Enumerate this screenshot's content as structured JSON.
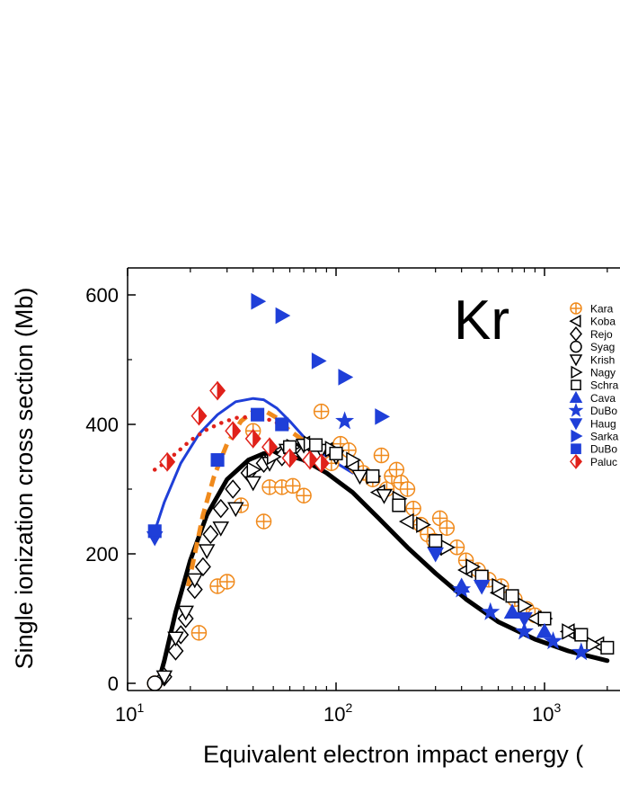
{
  "chart_data": {
    "type": "scatter",
    "element_label": "Kr",
    "xlabel": "Equivalent electron impact energy (",
    "ylabel": "Single ionization cross section (Mb)",
    "xscale": "log",
    "xlim": [
      10,
      2000
    ],
    "ylim": [
      -10,
      630
    ],
    "x_ticks": [
      {
        "value": 10,
        "base": "10",
        "exp": "1"
      },
      {
        "value": 100,
        "base": "10",
        "exp": "2"
      },
      {
        "value": 1000,
        "base": "10",
        "exp": "3"
      }
    ],
    "y_ticks": [
      {
        "value": 0,
        "label": "0"
      },
      {
        "value": 200,
        "label": "200"
      },
      {
        "value": 400,
        "label": "400"
      },
      {
        "value": 600,
        "label": "600"
      }
    ],
    "legend_position": "top-right (cropped)",
    "curves": [
      {
        "name": "black theory",
        "color": "#000000",
        "style": "solid-thick",
        "x": [
          14.0,
          15,
          17,
          20,
          24,
          30,
          38,
          45,
          55,
          70,
          90,
          120,
          160,
          220,
          300,
          420,
          600,
          900,
          1300,
          2000
        ],
        "y": [
          0,
          35,
          110,
          190,
          260,
          315,
          345,
          355,
          355,
          345,
          325,
          295,
          255,
          210,
          170,
          130,
          95,
          68,
          50,
          35
        ]
      },
      {
        "name": "blue theory",
        "color": "#1f3fd8",
        "style": "solid",
        "x": [
          13.5,
          15,
          18,
          22,
          27,
          33,
          40,
          45,
          52,
          60,
          75,
          95,
          120
        ],
        "y": [
          235,
          280,
          340,
          385,
          415,
          435,
          440,
          438,
          425,
          405,
          370,
          345,
          325
        ]
      },
      {
        "name": "orange theory",
        "color": "#f08a1c",
        "style": "dashed",
        "x": [
          19.5,
          21,
          23,
          26,
          30,
          35,
          40,
          45,
          52,
          60,
          70,
          80
        ],
        "y": [
          150,
          200,
          260,
          320,
          370,
          405,
          420,
          422,
          410,
          390,
          375,
          365
        ]
      },
      {
        "name": "red theory",
        "color": "#e0211a",
        "style": "dotted",
        "x": [
          13.5,
          15,
          17,
          20,
          24,
          28,
          33,
          40,
          48,
          56
        ],
        "y": [
          330,
          340,
          355,
          375,
          392,
          402,
          410,
          412,
          407,
          398
        ]
      }
    ],
    "series": [
      {
        "name": "Kara",
        "marker": "circle-plus",
        "color": "#f08a1c",
        "x": [
          13.5,
          22,
          27,
          30,
          35,
          40,
          45,
          48,
          55,
          62,
          70,
          85,
          95,
          105,
          115,
          125,
          135,
          150,
          165,
          175,
          185,
          195,
          205,
          220,
          235,
          255,
          275,
          295,
          315,
          340,
          380,
          420,
          480,
          540,
          620,
          720,
          820,
          900
        ],
        "y": [
          0,
          78,
          150,
          157,
          275,
          390,
          250,
          303,
          303,
          305,
          290,
          420,
          340,
          370,
          360,
          335,
          325,
          315,
          352,
          300,
          320,
          330,
          310,
          300,
          270,
          245,
          230,
          220,
          255,
          240,
          210,
          190,
          175,
          160,
          150,
          130,
          115,
          105
        ]
      },
      {
        "name": "Koba",
        "marker": "triangle-left",
        "color": "#000000",
        "x": [
          55,
          70,
          90,
          120,
          160,
          220,
          300,
          420,
          600,
          900,
          1300,
          1800
        ],
        "y": [
          360,
          370,
          360,
          335,
          295,
          250,
          210,
          175,
          140,
          100,
          80,
          60
        ]
      },
      {
        "name": "Rejo",
        "marker": "diamond",
        "color": "#000000",
        "x": [
          15,
          17,
          18,
          19,
          21,
          23,
          25,
          28,
          32,
          38,
          45,
          55,
          70
        ],
        "y": [
          10,
          50,
          75,
          100,
          145,
          180,
          230,
          270,
          300,
          325,
          340,
          350,
          355
        ]
      },
      {
        "name": "Syag",
        "marker": "circle",
        "color": "#000000",
        "x": [
          13.5
        ],
        "y": [
          0
        ]
      },
      {
        "name": "Krish",
        "marker": "triangle-down",
        "color": "#000000",
        "x": [
          15,
          17,
          19,
          21,
          24,
          28,
          33,
          40,
          48,
          58,
          70,
          85,
          100,
          130,
          170
        ],
        "y": [
          10,
          70,
          110,
          160,
          205,
          240,
          270,
          310,
          340,
          360,
          368,
          360,
          350,
          320,
          290
        ]
      },
      {
        "name": "Nagy",
        "marker": "triangle-right",
        "color": "#000000",
        "x": [
          40,
          50,
          62,
          75,
          95,
          120,
          150,
          200,
          260,
          340,
          450,
          600,
          800,
          1000,
          1300,
          1700
        ],
        "y": [
          330,
          350,
          365,
          370,
          362,
          345,
          320,
          285,
          245,
          210,
          180,
          150,
          120,
          100,
          80,
          60
        ]
      },
      {
        "name": "Schra",
        "marker": "square",
        "color": "#000000",
        "x": [
          60,
          80,
          100,
          150,
          200,
          300,
          500,
          700,
          1000,
          1500,
          2000
        ],
        "y": [
          365,
          368,
          355,
          320,
          275,
          220,
          165,
          135,
          100,
          75,
          55
        ]
      },
      {
        "name": "Cava",
        "marker": "triangle-up",
        "color": "#1f3fd8",
        "x": [
          400,
          700,
          1000
        ],
        "y": [
          150,
          110,
          80
        ]
      },
      {
        "name": "DuBo",
        "marker": "star",
        "color": "#1f3fd8",
        "x": [
          110,
          400,
          550,
          800,
          1100,
          1500
        ],
        "y": [
          405,
          145,
          110,
          80,
          65,
          48
        ]
      },
      {
        "name": "Haug",
        "marker": "triangle-down-filled",
        "color": "#1f3fd8",
        "x": [
          13.5,
          300,
          500,
          800
        ],
        "y": [
          225,
          200,
          150,
          100
        ]
      },
      {
        "name": "Sarka",
        "marker": "triangle-right-filled",
        "color": "#1f3fd8",
        "x": [
          42,
          55,
          82,
          110,
          165
        ],
        "y": [
          590,
          568,
          498,
          473,
          412
        ]
      },
      {
        "name": "DuBo",
        "marker": "square-filled",
        "color": "#1f3fd8",
        "x": [
          13.5,
          27,
          42,
          55
        ],
        "y": [
          235,
          345,
          415,
          400
        ]
      },
      {
        "name": "Paluc",
        "marker": "diamond-half",
        "color": "#e0211a",
        "x": [
          15.5,
          22,
          27,
          32,
          40,
          48,
          60,
          75,
          85
        ],
        "y": [
          342,
          413,
          452,
          390,
          378,
          365,
          348,
          345,
          340
        ]
      }
    ]
  }
}
